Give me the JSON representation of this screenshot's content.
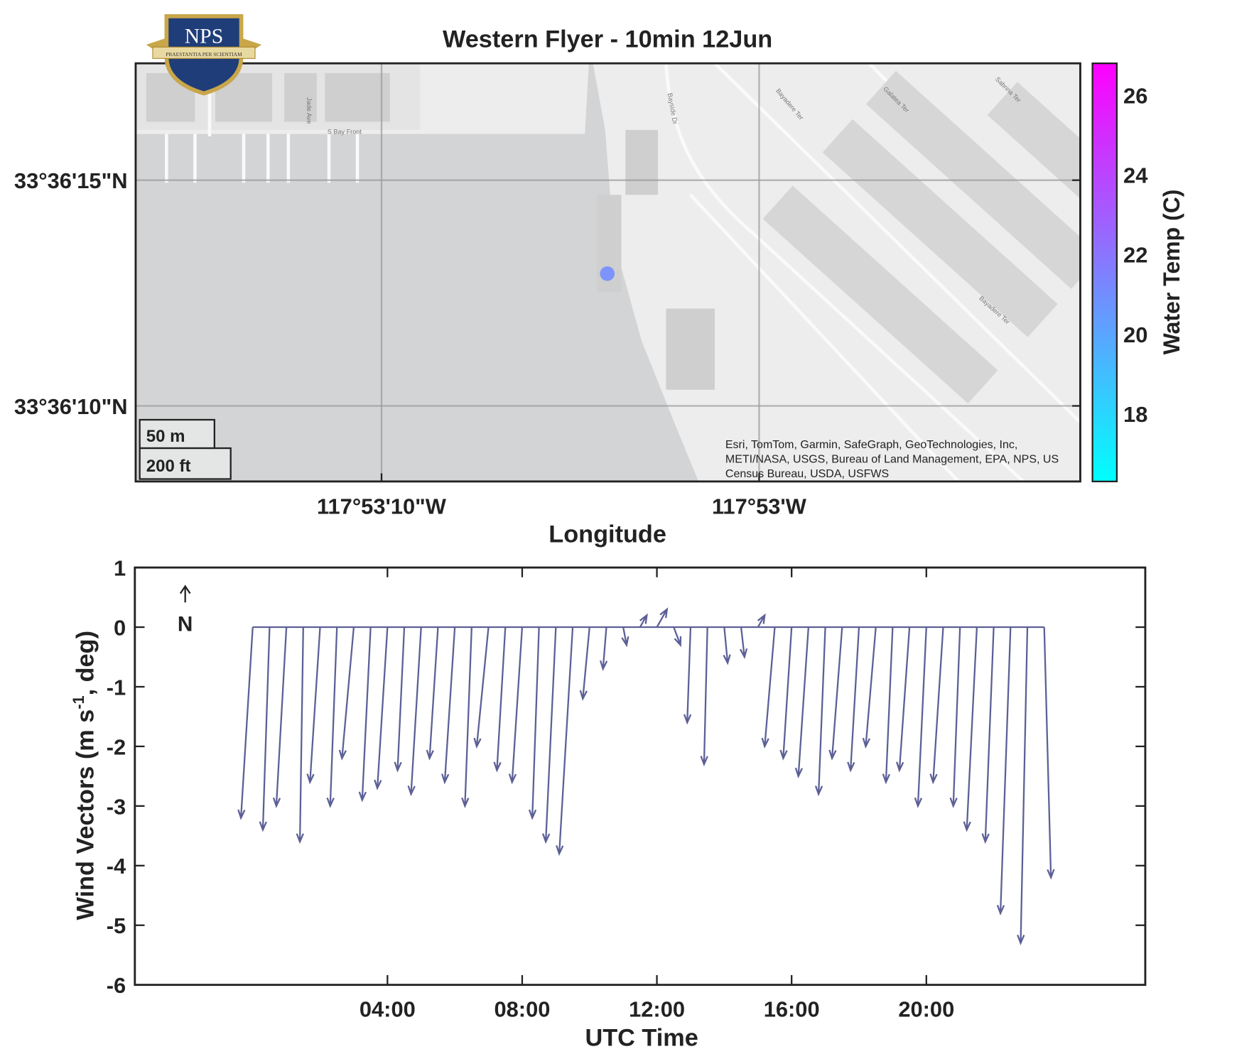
{
  "logo": {
    "text": "NPS",
    "motto": "PRAESTANTIA PER SCIENTIAM"
  },
  "chart_data": [
    {
      "type": "map-scatter",
      "title": "Western Flyer - 10min 12Jun",
      "xlabel": "Longitude",
      "xlim": [
        -117.88792,
        -117.88097
      ],
      "ylim": [
        33.602313,
        33.604886
      ],
      "xticks": [
        {
          "value": -117.886111,
          "label": "117°53'10\"W"
        },
        {
          "value": -117.883333,
          "label": "117°53'W"
        }
      ],
      "yticks": [
        {
          "value": 33.602778,
          "label": "33°36'10\"N"
        },
        {
          "value": 33.604167,
          "label": "33°36'15\"N"
        }
      ],
      "grid": true,
      "x": [
        -117.88445
      ],
      "y": [
        33.603592
      ],
      "values": [
        21
      ],
      "colorbar": {
        "label": "Water Temp (C)",
        "clim": [
          16.3,
          26.8
        ],
        "ticks": [
          18,
          20,
          22,
          24,
          26
        ],
        "colormap": [
          "#00ffff",
          "#ff00ff"
        ]
      },
      "scale_bar": [
        "50 m",
        "200 ft"
      ],
      "attribution": [
        "Esri, TomTom, Garmin, SafeGraph, GeoTechnologies, Inc,",
        "METI/NASA, USGS, Bureau of Land Management, EPA, NPS, US",
        "Census Bureau, USDA, USFWS"
      ],
      "street_labels": [
        "Jade Ave",
        "S Bay Front",
        "Bayside Dr",
        "Bayadere Ter",
        "Galatea Ter",
        "Sabrina Ter",
        "Bayadere Ter"
      ]
    },
    {
      "type": "feather",
      "xlabel": "UTC Time",
      "ylabel": [
        "Wind  Vectors  (m s",
        "-1",
        ",  deg)"
      ],
      "north_label": "N",
      "color": "#5c6096",
      "xlim": [
        -3.5,
        26.5
      ],
      "ylim": [
        -6,
        1
      ],
      "xticks": [
        {
          "value": 4,
          "label": "04:00"
        },
        {
          "value": 8,
          "label": "08:00"
        },
        {
          "value": 12,
          "label": "12:00"
        },
        {
          "value": 16,
          "label": "16:00"
        },
        {
          "value": 20,
          "label": "20:00"
        }
      ],
      "yticks": [
        -6,
        -5,
        -4,
        -3,
        -2,
        -1,
        0,
        1
      ],
      "x": [
        0,
        0.5,
        1,
        1.5,
        2,
        2.5,
        3,
        3.5,
        4,
        4.5,
        5,
        5.5,
        6,
        6.5,
        7,
        7.5,
        8,
        8.5,
        9,
        9.5,
        10,
        10.5,
        11,
        11.5,
        12,
        12.5,
        13,
        13.5,
        14,
        14.5,
        15,
        15.5,
        16,
        16.5,
        17,
        17.5,
        18,
        18.5,
        19,
        19.5,
        20,
        20.5,
        21,
        21.5,
        22,
        22.5,
        23,
        23.5
      ],
      "u": [
        -0.35,
        -0.2,
        -0.3,
        -0.1,
        -0.3,
        -0.2,
        -0.35,
        -0.25,
        -0.3,
        -0.2,
        -0.3,
        -0.25,
        -0.3,
        -0.2,
        -0.35,
        -0.25,
        -0.3,
        -0.2,
        -0.3,
        -0.4,
        -0.2,
        -0.1,
        0.1,
        0.2,
        0.3,
        0.2,
        -0.1,
        -0.1,
        0.1,
        0.1,
        0.2,
        -0.3,
        -0.25,
        -0.3,
        -0.2,
        -0.3,
        -0.25,
        -0.3,
        -0.2,
        -0.3,
        -0.25,
        -0.3,
        -0.2,
        -0.3,
        -0.25,
        -0.3,
        -0.2,
        0.2
      ],
      "v": [
        -3.2,
        -3.4,
        -3.0,
        -3.6,
        -2.6,
        -3.0,
        -2.2,
        -2.9,
        -2.7,
        -2.4,
        -2.8,
        -2.2,
        -2.6,
        -3.0,
        -2.0,
        -2.4,
        -2.6,
        -3.2,
        -3.6,
        -3.8,
        -1.2,
        -0.7,
        -0.3,
        0.2,
        0.3,
        -0.3,
        -1.6,
        -2.3,
        -0.6,
        -0.5,
        0.2,
        -2.0,
        -2.2,
        -2.5,
        -2.8,
        -2.2,
        -2.4,
        -2.0,
        -2.6,
        -2.4,
        -3.0,
        -2.6,
        -3.0,
        -3.4,
        -3.6,
        -4.8,
        -5.3,
        -4.2
      ]
    }
  ]
}
